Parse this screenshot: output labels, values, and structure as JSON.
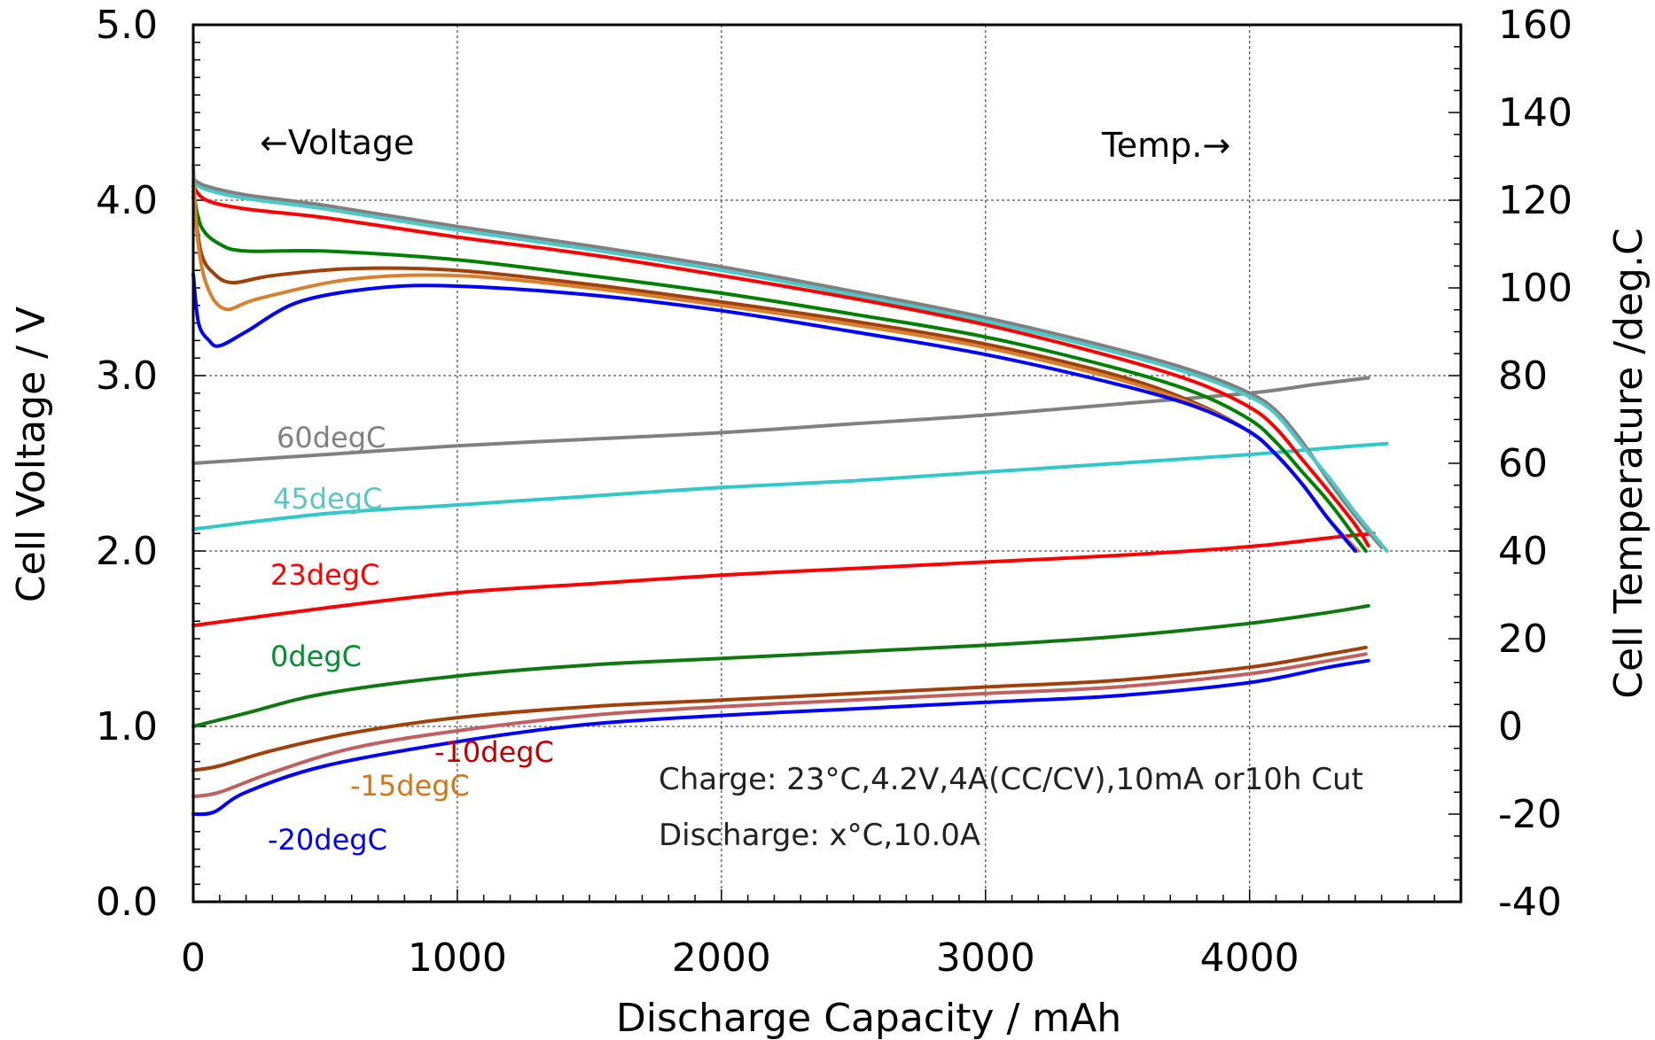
{
  "chart_data": {
    "type": "line",
    "title": "",
    "xlabel": "Discharge Capacity / mAh",
    "ylabel": "Cell Voltage / V",
    "y2label": "Cell Temperature /deg.C",
    "xlim": [
      0,
      4800
    ],
    "ylim": [
      0.0,
      5.0
    ],
    "y2lim": [
      -40,
      160
    ],
    "x_ticks": [
      "0",
      "1000",
      "2000",
      "3000",
      "4000"
    ],
    "y_ticks": [
      "0.0",
      "1.0",
      "2.0",
      "3.0",
      "4.0",
      "5.0"
    ],
    "y2_ticks": [
      "-40",
      "-20",
      "0",
      "20",
      "40",
      "60",
      "80",
      "100",
      "120",
      "140",
      "160"
    ],
    "grid": true,
    "legend": "none",
    "annotations": {
      "voltage_arrow": "←Voltage",
      "temp_arrow": "Temp.→",
      "charge_note": "Charge: 23°C,4.2V,4A(CC/CV),10mA or10h Cut",
      "discharge_note": "Discharge: x°C,10.0A"
    },
    "series_labels": {
      "s60": "60degC",
      "s45": "45degC",
      "s23": "23degC",
      "s0": "0degC",
      "sm10": "-10degC",
      "sm15": "-15degC",
      "sm20": "-20degC"
    },
    "voltage_series": [
      {
        "key": "s60",
        "color": "#808080",
        "points": [
          [
            0,
            4.12
          ],
          [
            50,
            4.08
          ],
          [
            200,
            4.03
          ],
          [
            500,
            3.97
          ],
          [
            1000,
            3.85
          ],
          [
            1500,
            3.74
          ],
          [
            2000,
            3.62
          ],
          [
            2500,
            3.48
          ],
          [
            3000,
            3.33
          ],
          [
            3500,
            3.15
          ],
          [
            3800,
            3.02
          ],
          [
            4000,
            2.9
          ],
          [
            4100,
            2.8
          ],
          [
            4200,
            2.62
          ],
          [
            4300,
            2.4
          ],
          [
            4400,
            2.2
          ],
          [
            4500,
            2.02
          ]
        ]
      },
      {
        "key": "s45",
        "color": "#4CC8C8",
        "points": [
          [
            0,
            4.1
          ],
          [
            50,
            4.06
          ],
          [
            200,
            4.01
          ],
          [
            500,
            3.95
          ],
          [
            1000,
            3.83
          ],
          [
            1500,
            3.72
          ],
          [
            2000,
            3.6
          ],
          [
            2500,
            3.46
          ],
          [
            3000,
            3.31
          ],
          [
            3500,
            3.13
          ],
          [
            3800,
            3.0
          ],
          [
            4000,
            2.88
          ],
          [
            4100,
            2.78
          ],
          [
            4200,
            2.6
          ],
          [
            4300,
            2.42
          ],
          [
            4400,
            2.22
          ],
          [
            4520,
            2.0
          ]
        ]
      },
      {
        "key": "s23",
        "color": "#FF0000",
        "points": [
          [
            0,
            4.08
          ],
          [
            50,
            4.0
          ],
          [
            200,
            3.95
          ],
          [
            500,
            3.9
          ],
          [
            1000,
            3.79
          ],
          [
            1500,
            3.69
          ],
          [
            2000,
            3.57
          ],
          [
            2500,
            3.44
          ],
          [
            3000,
            3.29
          ],
          [
            3500,
            3.1
          ],
          [
            3800,
            2.96
          ],
          [
            4000,
            2.82
          ],
          [
            4100,
            2.7
          ],
          [
            4200,
            2.52
          ],
          [
            4300,
            2.34
          ],
          [
            4400,
            2.15
          ],
          [
            4450,
            2.03
          ]
        ]
      },
      {
        "key": "s0",
        "color": "#008000",
        "points": [
          [
            0,
            4.05
          ],
          [
            30,
            3.85
          ],
          [
            100,
            3.75
          ],
          [
            200,
            3.71
          ],
          [
            500,
            3.71
          ],
          [
            1000,
            3.66
          ],
          [
            1500,
            3.57
          ],
          [
            2000,
            3.47
          ],
          [
            2500,
            3.35
          ],
          [
            3000,
            3.22
          ],
          [
            3500,
            3.04
          ],
          [
            3800,
            2.9
          ],
          [
            4000,
            2.75
          ],
          [
            4100,
            2.62
          ],
          [
            4200,
            2.45
          ],
          [
            4300,
            2.28
          ],
          [
            4400,
            2.08
          ],
          [
            4440,
            2.0
          ]
        ]
      },
      {
        "key": "sm10",
        "color": "#A0400A",
        "points": [
          [
            0,
            4.02
          ],
          [
            30,
            3.7
          ],
          [
            80,
            3.58
          ],
          [
            150,
            3.53
          ],
          [
            300,
            3.57
          ],
          [
            600,
            3.61
          ],
          [
            1000,
            3.6
          ],
          [
            1500,
            3.52
          ],
          [
            2000,
            3.42
          ],
          [
            2500,
            3.31
          ],
          [
            3000,
            3.18
          ],
          [
            3500,
            3.0
          ],
          [
            3800,
            2.84
          ],
          [
            4000,
            2.68
          ],
          [
            4100,
            2.55
          ],
          [
            4200,
            2.38
          ],
          [
            4300,
            2.18
          ],
          [
            4410,
            2.0
          ]
        ]
      },
      {
        "key": "sm15",
        "color": "#D88030",
        "points": [
          [
            0,
            4.2
          ],
          [
            15,
            3.8
          ],
          [
            50,
            3.52
          ],
          [
            120,
            3.38
          ],
          [
            250,
            3.44
          ],
          [
            600,
            3.55
          ],
          [
            1000,
            3.57
          ],
          [
            1500,
            3.5
          ],
          [
            2000,
            3.4
          ],
          [
            2500,
            3.29
          ],
          [
            3000,
            3.16
          ],
          [
            3500,
            2.98
          ],
          [
            3800,
            2.83
          ],
          [
            4000,
            2.68
          ],
          [
            4100,
            2.55
          ],
          [
            4200,
            2.38
          ],
          [
            4300,
            2.18
          ],
          [
            4410,
            2.0
          ]
        ]
      },
      {
        "key": "sm20",
        "color": "#0000FF",
        "points": [
          [
            0,
            3.58
          ],
          [
            20,
            3.3
          ],
          [
            60,
            3.2
          ],
          [
            100,
            3.17
          ],
          [
            200,
            3.25
          ],
          [
            400,
            3.42
          ],
          [
            700,
            3.5
          ],
          [
            1000,
            3.51
          ],
          [
            1500,
            3.46
          ],
          [
            2000,
            3.37
          ],
          [
            2500,
            3.25
          ],
          [
            3000,
            3.12
          ],
          [
            3500,
            2.95
          ],
          [
            3800,
            2.82
          ],
          [
            4000,
            2.68
          ],
          [
            4100,
            2.55
          ],
          [
            4200,
            2.38
          ],
          [
            4300,
            2.18
          ],
          [
            4400,
            2.0
          ]
        ]
      }
    ],
    "temperature_series": [
      {
        "key": "s60",
        "color": "#808080",
        "points": [
          [
            0,
            60.0
          ],
          [
            500,
            62.0
          ],
          [
            1000,
            64.0
          ],
          [
            1500,
            65.5
          ],
          [
            2000,
            67.0
          ],
          [
            2500,
            69.0
          ],
          [
            3000,
            71.0
          ],
          [
            3500,
            73.5
          ],
          [
            4000,
            76.0
          ],
          [
            4250,
            78.0
          ],
          [
            4450,
            79.5
          ]
        ]
      },
      {
        "key": "s45",
        "color": "#30C8C8",
        "points": [
          [
            0,
            45.0
          ],
          [
            500,
            48.5
          ],
          [
            1000,
            50.5
          ],
          [
            1500,
            52.5
          ],
          [
            2000,
            54.5
          ],
          [
            2500,
            56.0
          ],
          [
            3000,
            58.0
          ],
          [
            3500,
            60.0
          ],
          [
            4000,
            62.0
          ],
          [
            4300,
            63.5
          ],
          [
            4520,
            64.5
          ]
        ]
      },
      {
        "key": "s23",
        "color": "#FF0000",
        "points": [
          [
            0,
            23.0
          ],
          [
            500,
            27.0
          ],
          [
            1000,
            30.5
          ],
          [
            1500,
            32.5
          ],
          [
            2000,
            34.5
          ],
          [
            2500,
            36.0
          ],
          [
            3000,
            37.5
          ],
          [
            3500,
            39.0
          ],
          [
            4000,
            41.0
          ],
          [
            4300,
            43.0
          ],
          [
            4470,
            44.0
          ]
        ]
      },
      {
        "key": "s0",
        "color": "#107810",
        "points": [
          [
            0,
            0.0
          ],
          [
            200,
            3.0
          ],
          [
            500,
            7.5
          ],
          [
            1000,
            11.5
          ],
          [
            1500,
            14.0
          ],
          [
            2000,
            15.5
          ],
          [
            2500,
            17.0
          ],
          [
            3000,
            18.5
          ],
          [
            3500,
            20.5
          ],
          [
            4000,
            23.5
          ],
          [
            4300,
            26.0
          ],
          [
            4450,
            27.5
          ]
        ]
      },
      {
        "key": "sm10",
        "color": "#A0400A",
        "points": [
          [
            0,
            -10.0
          ],
          [
            100,
            -9.0
          ],
          [
            300,
            -5.5
          ],
          [
            600,
            -1.5
          ],
          [
            1000,
            2.0
          ],
          [
            1500,
            4.5
          ],
          [
            2000,
            6.0
          ],
          [
            2500,
            7.5
          ],
          [
            3000,
            9.0
          ],
          [
            3500,
            10.5
          ],
          [
            4000,
            13.5
          ],
          [
            4300,
            16.5
          ],
          [
            4440,
            18.0
          ]
        ]
      },
      {
        "key": "sm15",
        "color": "#C06060",
        "points": [
          [
            0,
            -16.0
          ],
          [
            100,
            -15.0
          ],
          [
            300,
            -10.5
          ],
          [
            600,
            -5.0
          ],
          [
            1000,
            -1.0
          ],
          [
            1500,
            2.5
          ],
          [
            2000,
            4.5
          ],
          [
            2500,
            6.0
          ],
          [
            3000,
            7.5
          ],
          [
            3500,
            9.0
          ],
          [
            4000,
            12.0
          ],
          [
            4300,
            15.0
          ],
          [
            4440,
            16.5
          ]
        ]
      },
      {
        "key": "sm20",
        "color": "#0000FF",
        "points": [
          [
            0,
            -20.0
          ],
          [
            80,
            -19.5
          ],
          [
            200,
            -15.0
          ],
          [
            500,
            -9.0
          ],
          [
            1000,
            -3.5
          ],
          [
            1500,
            0.5
          ],
          [
            2000,
            2.5
          ],
          [
            2500,
            4.0
          ],
          [
            3000,
            5.5
          ],
          [
            3500,
            7.0
          ],
          [
            4000,
            10.0
          ],
          [
            4300,
            13.5
          ],
          [
            4450,
            15.0
          ]
        ]
      }
    ]
  }
}
